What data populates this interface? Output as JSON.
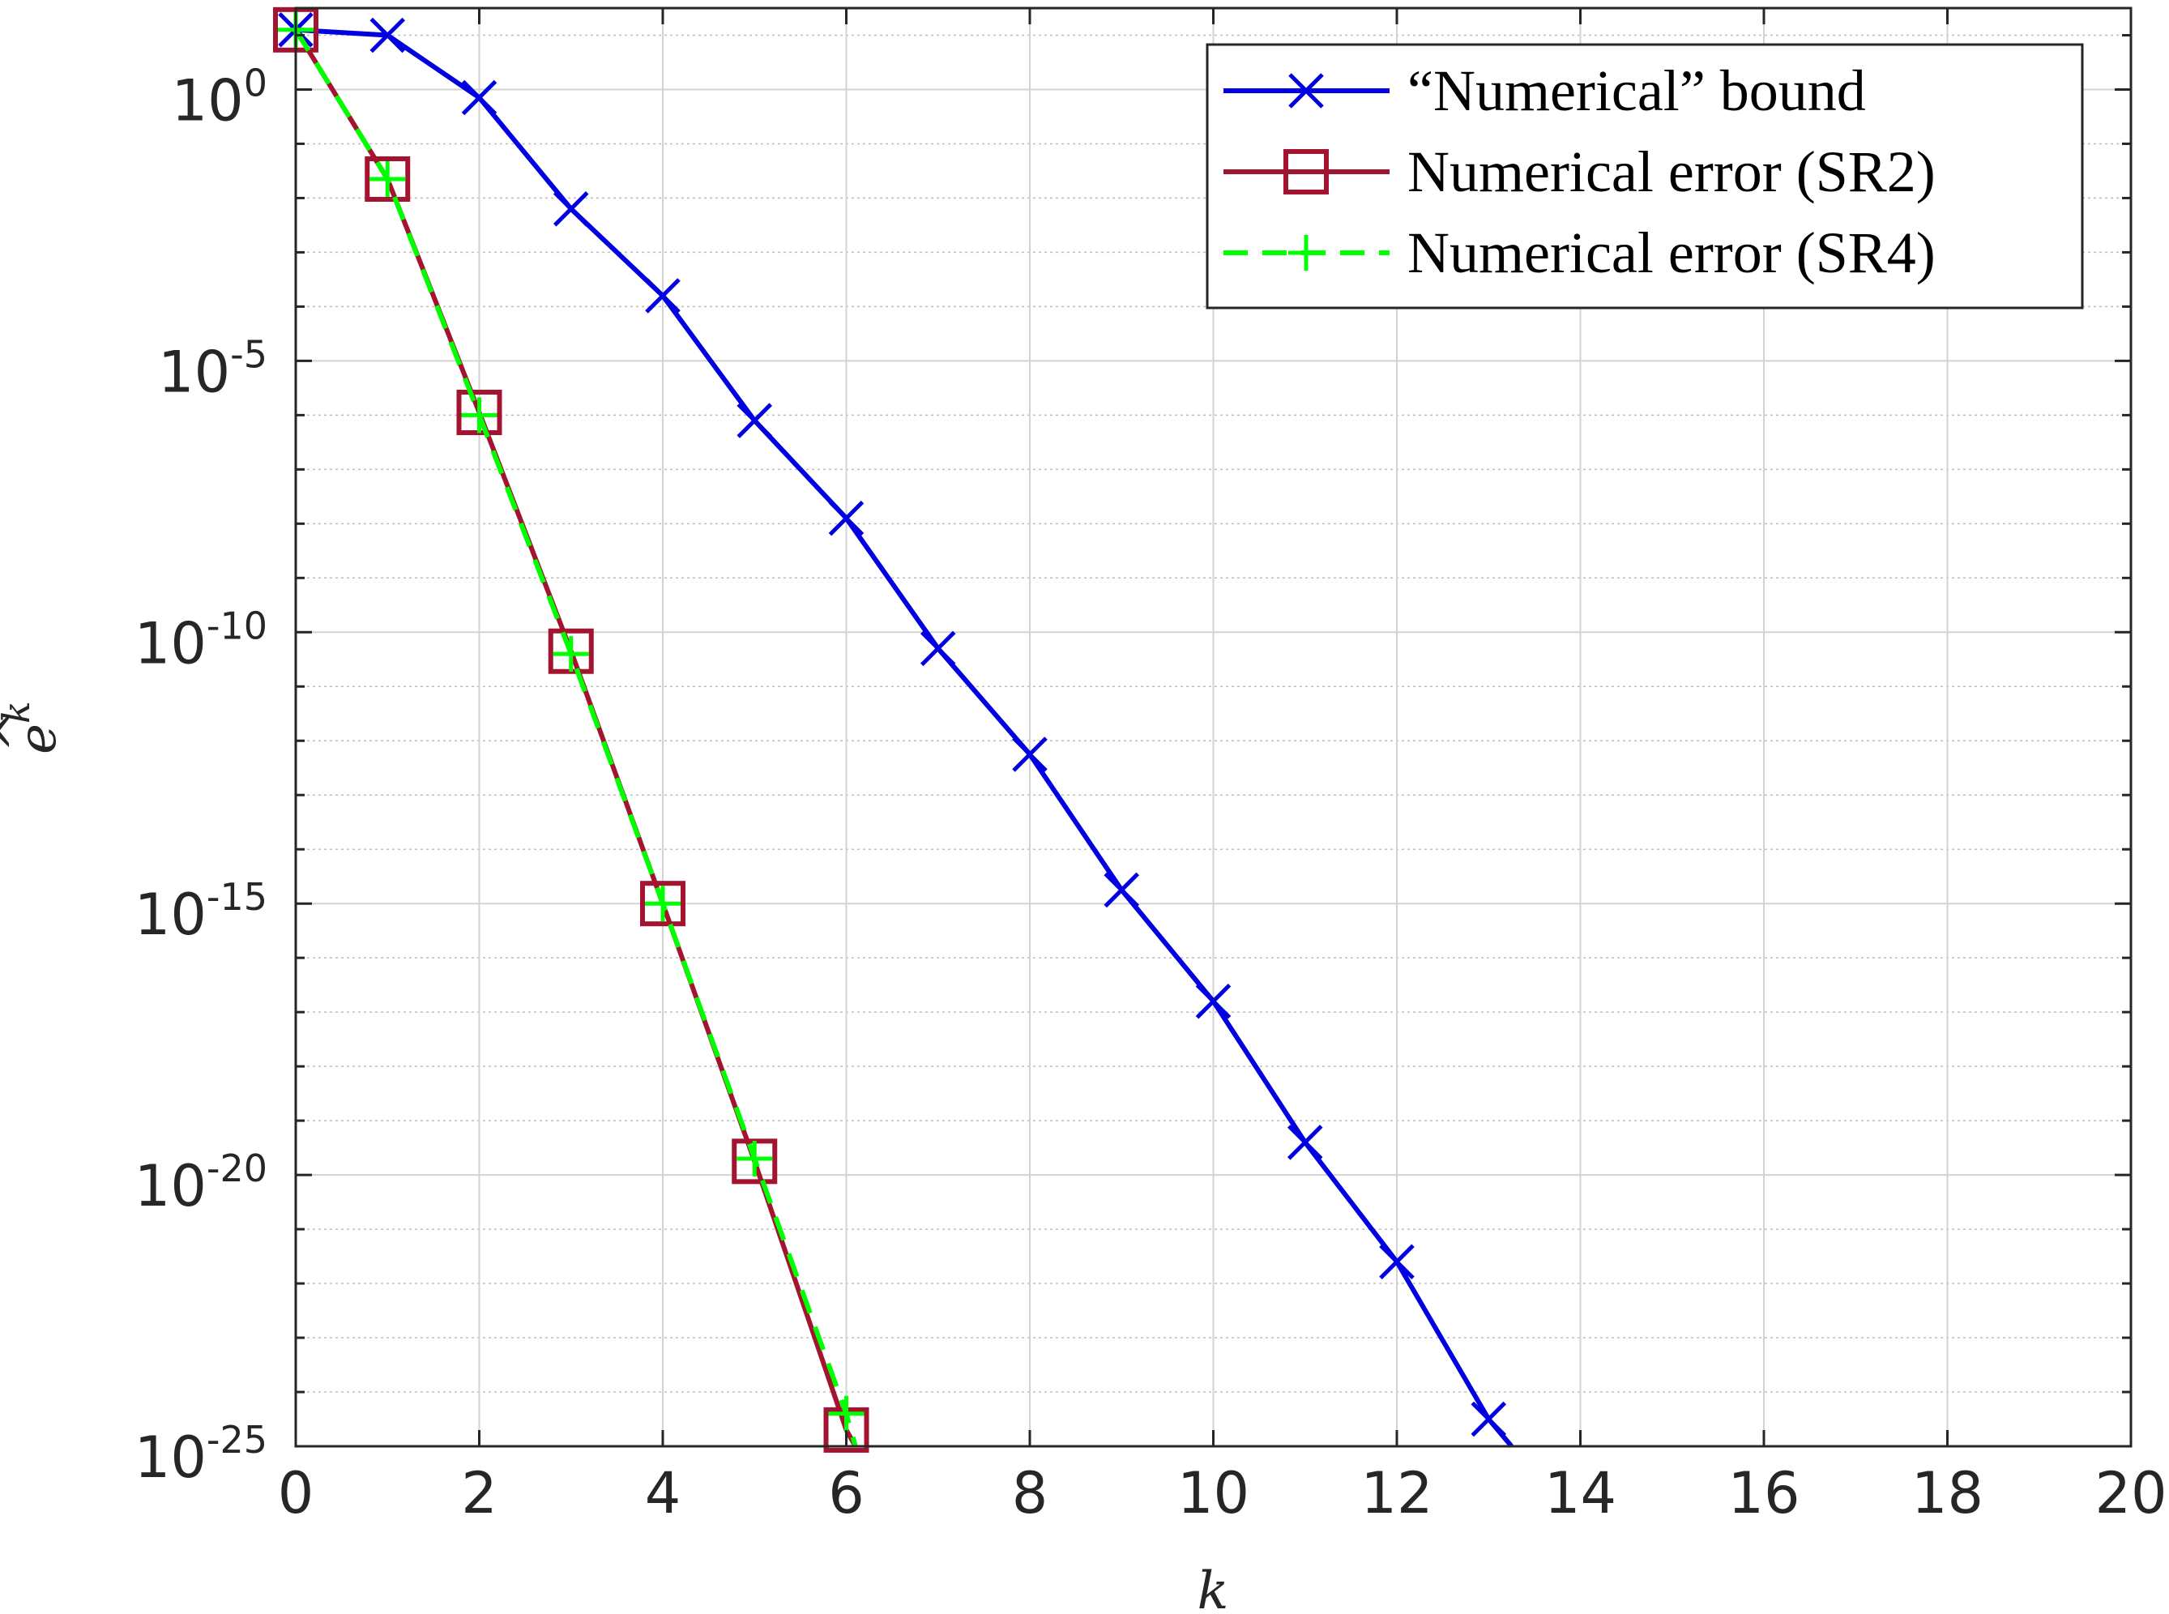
{
  "chart_data": {
    "type": "line",
    "xlabel": "k",
    "ylabel": "ê^k",
    "ylabel_base": "e",
    "ylabel_accent": "^",
    "ylabel_sup": "k",
    "xlim": [
      0,
      20
    ],
    "ylim_log10": [
      -25,
      1.5
    ],
    "yscale": "log",
    "grid": true,
    "minor_grid": true,
    "legend_position": "top-right",
    "x_ticks": [
      {
        "value": 0,
        "label": "0"
      },
      {
        "value": 2,
        "label": "2"
      },
      {
        "value": 4,
        "label": "4"
      },
      {
        "value": 6,
        "label": "6"
      },
      {
        "value": 8,
        "label": "8"
      },
      {
        "value": 10,
        "label": "10"
      },
      {
        "value": 12,
        "label": "12"
      },
      {
        "value": 14,
        "label": "14"
      },
      {
        "value": 16,
        "label": "16"
      },
      {
        "value": 18,
        "label": "18"
      },
      {
        "value": 20,
        "label": "20"
      }
    ],
    "y_ticks": [
      {
        "exponent": 0,
        "base": "10",
        "power": "0"
      },
      {
        "exponent": -5,
        "base": "10",
        "power": "-5"
      },
      {
        "exponent": -10,
        "base": "10",
        "power": "-10"
      },
      {
        "exponent": -15,
        "base": "10",
        "power": "-15"
      },
      {
        "exponent": -20,
        "base": "10",
        "power": "-20"
      },
      {
        "exponent": -25,
        "base": "10",
        "power": "-25"
      }
    ],
    "series": [
      {
        "name": "“Numerical” bound",
        "color": "#0000e0",
        "marker": "x",
        "dash": "solid",
        "x": [
          0,
          1,
          2,
          3,
          4,
          5,
          6,
          7,
          8,
          9,
          10,
          11,
          12,
          13,
          13.25
        ],
        "log10_y": [
          1.1,
          1.0,
          -0.15,
          -2.2,
          -3.8,
          -6.1,
          -7.9,
          -10.3,
          -12.25,
          -14.75,
          -16.8,
          -19.4,
          -21.6,
          -24.5,
          -25.0
        ],
        "marker_count": 14
      },
      {
        "name": "Numerical error (SR2)",
        "color": "#a2142f",
        "marker": "square",
        "dash": "solid",
        "x": [
          0,
          1,
          2,
          3,
          4,
          5,
          6,
          6.1
        ],
        "log10_y": [
          1.1,
          -1.65,
          -5.95,
          -10.35,
          -15.0,
          -19.75,
          -24.7,
          -25.0
        ],
        "marker_count": 7
      },
      {
        "name": "Numerical error (SR4)",
        "color": "#00ff00",
        "marker": "plus",
        "dash": "dashed",
        "x": [
          0,
          1,
          2,
          3,
          4,
          5,
          6,
          6.1
        ],
        "log10_y": [
          1.1,
          -1.65,
          -6.0,
          -10.4,
          -15.0,
          -19.7,
          -24.4,
          -25.0
        ],
        "marker_count": 7
      }
    ]
  }
}
